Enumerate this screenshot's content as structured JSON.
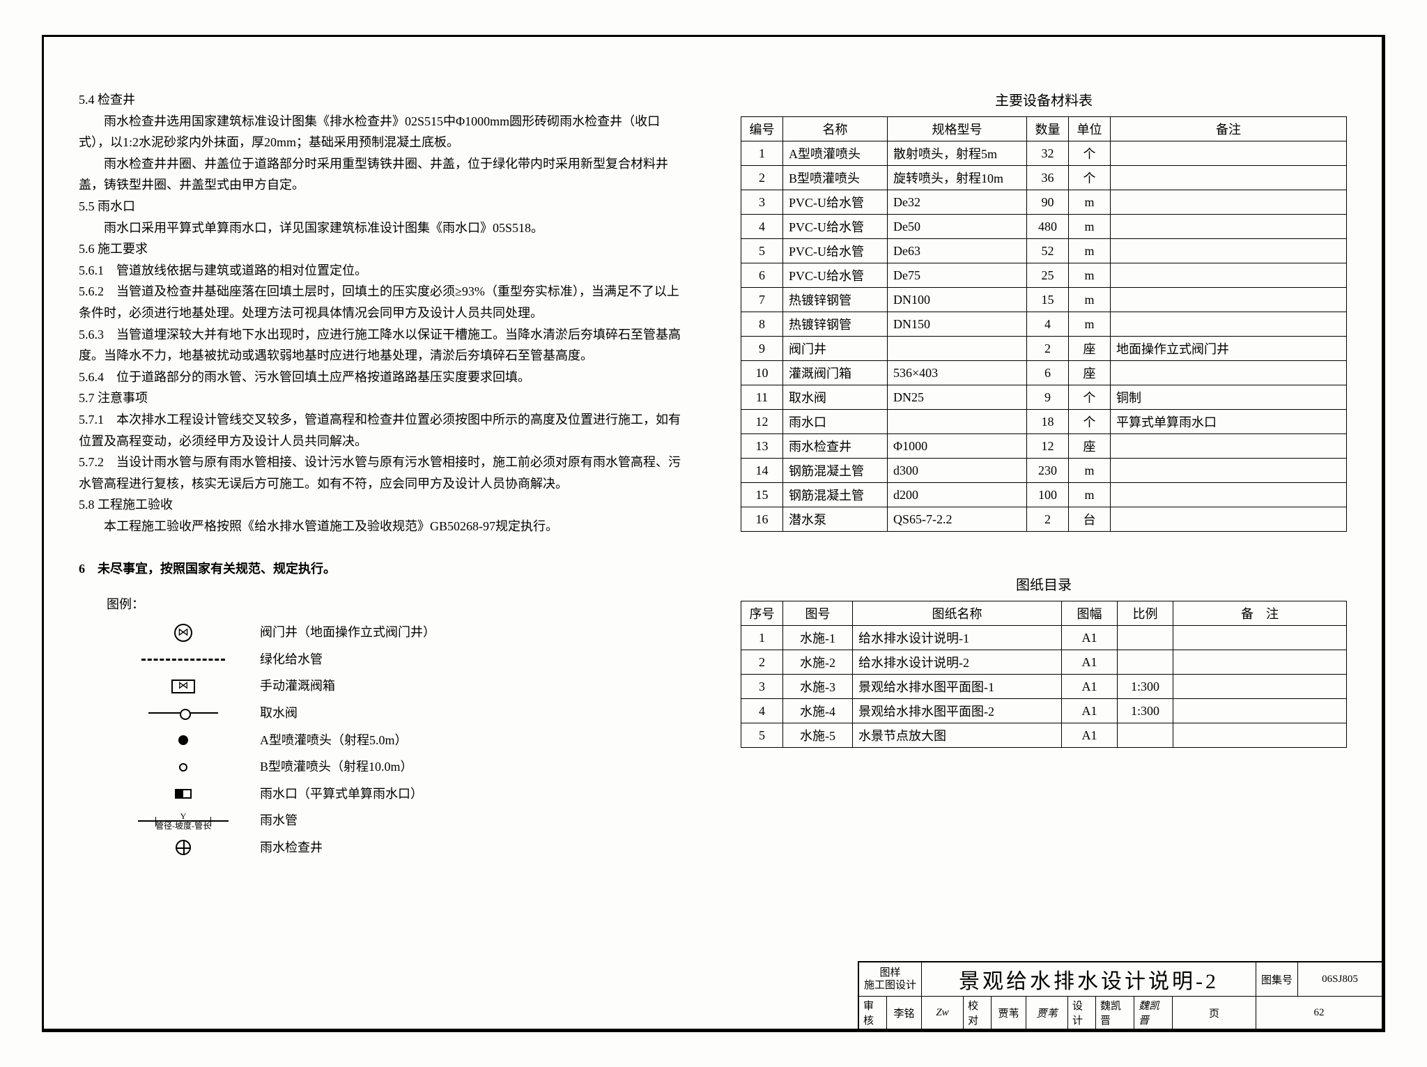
{
  "left_text": {
    "s54_head": "5.4 检查井",
    "s54_p1": "雨水检查井选用国家建筑标准设计图集《排水检查井》02S515中Φ1000mm圆形砖砌雨水检查井（收口式），以1:2水泥砂浆内外抹面，厚20mm；基础采用预制混凝土底板。",
    "s54_p2": "雨水检查井井圈、井盖位于道路部分时采用重型铸铁井圈、井盖，位于绿化带内时采用新型复合材料井盖，铸铁型井圈、井盖型式由甲方自定。",
    "s55_head": "5.5 雨水口",
    "s55_p1": "雨水口采用平算式单算雨水口，详见国家建筑标准设计图集《雨水口》05S518。",
    "s56_head": "5.6 施工要求",
    "s561": "5.6.1　管道放线依据与建筑或道路的相对位置定位。",
    "s562": "5.6.2　当管道及检查井基础座落在回填土层时，回填土的压实度必须≥93%（重型夯实标准），当满足不了以上条件时，必须进行地基处理。处理方法可视具体情况会同甲方及设计人员共同处理。",
    "s563": "5.6.3　当管道埋深较大并有地下水出现时，应进行施工降水以保证干槽施工。当降水清淤后夯填碎石至管基高度。当降水不力，地基被扰动或遇软弱地基时应进行地基处理，清淤后夯填碎石至管基高度。",
    "s564": "5.6.4　位于道路部分的雨水管、污水管回填土应严格按道路路基压实度要求回填。",
    "s57_head": "5.7 注意事项",
    "s571": "5.7.1　本次排水工程设计管线交叉较多，管道高程和检查井位置必须按图中所示的高度及位置进行施工，如有位置及高程变动，必须经甲方及设计人员共同解决。",
    "s572": "5.7.2　当设计雨水管与原有雨水管相接、设计污水管与原有污水管相接时，施工前必须对原有雨水管高程、污水管高程进行复核，核实无误后方可施工。如有不符，应会同甲方及设计人员协商解决。",
    "s58_head": "5.8 工程施工验收",
    "s58_p1": "本工程施工验收严格按照《给水排水管道施工及验收规范》GB50268-97规定执行。",
    "s6_head": "6　未尽事宜，按照国家有关规范、规定执行。"
  },
  "legend": {
    "title": "图例：",
    "items": [
      {
        "symbol": "circle-bowtie",
        "label": "阀门井（地面操作立式阀门井）"
      },
      {
        "symbol": "dashed-line",
        "label": "绿化给水管"
      },
      {
        "symbol": "rect-bowtie",
        "label": "手动灌溉阀箱"
      },
      {
        "symbol": "line-through",
        "label": "取水阀"
      },
      {
        "symbol": "circle-filled",
        "label": "A型喷灌喷头（射程5.0m）"
      },
      {
        "symbol": "circle-open",
        "label": "B型喷灌喷头（射程10.0m）"
      },
      {
        "symbol": "square-half",
        "label": "雨水口（平算式单算雨水口）"
      },
      {
        "symbol": "rain-pipe",
        "label": "雨水管",
        "sub": "管径-坡度-管长",
        "marker": "Y"
      },
      {
        "symbol": "crosshair",
        "label": "雨水检查井"
      }
    ]
  },
  "equip_table": {
    "title": "主要设备材料表",
    "headers": [
      "编号",
      "名称",
      "规格型号",
      "数量",
      "单位",
      "备注"
    ],
    "rows": [
      [
        "1",
        "A型喷灌喷头",
        "散射喷头，射程5m",
        "32",
        "个",
        ""
      ],
      [
        "2",
        "B型喷灌喷头",
        "旋转喷头，射程10m",
        "36",
        "个",
        ""
      ],
      [
        "3",
        "PVC-U给水管",
        "De32",
        "90",
        "m",
        ""
      ],
      [
        "4",
        "PVC-U给水管",
        "De50",
        "480",
        "m",
        ""
      ],
      [
        "5",
        "PVC-U给水管",
        "De63",
        "52",
        "m",
        ""
      ],
      [
        "6",
        "PVC-U给水管",
        "De75",
        "25",
        "m",
        ""
      ],
      [
        "7",
        "热镀锌钢管",
        "DN100",
        "15",
        "m",
        ""
      ],
      [
        "8",
        "热镀锌钢管",
        "DN150",
        "4",
        "m",
        ""
      ],
      [
        "9",
        "阀门井",
        "",
        "2",
        "座",
        "地面操作立式阀门井"
      ],
      [
        "10",
        "灌溉阀门箱",
        "536×403",
        "6",
        "座",
        ""
      ],
      [
        "11",
        "取水阀",
        "DN25",
        "9",
        "个",
        "铜制"
      ],
      [
        "12",
        "雨水口",
        "",
        "18",
        "个",
        "平算式单算雨水口"
      ],
      [
        "13",
        "雨水检查井",
        "Φ1000",
        "12",
        "座",
        ""
      ],
      [
        "14",
        "钢筋混凝土管",
        "d300",
        "230",
        "m",
        ""
      ],
      [
        "15",
        "钢筋混凝土管",
        "d200",
        "100",
        "m",
        ""
      ],
      [
        "16",
        "潜水泵",
        "QS65-7-2.2",
        "2",
        "台",
        ""
      ]
    ]
  },
  "drawing_table": {
    "title": "图纸目录",
    "headers": [
      "序号",
      "图号",
      "图纸名称",
      "图幅",
      "比例",
      "备　注"
    ],
    "rows": [
      [
        "1",
        "水施-1",
        "给水排水设计说明-1",
        "A1",
        "",
        ""
      ],
      [
        "2",
        "水施-2",
        "给水排水设计说明-2",
        "A1",
        "",
        ""
      ],
      [
        "3",
        "水施-3",
        "景观给水排水图平面图-1",
        "A1",
        "1:300",
        ""
      ],
      [
        "4",
        "水施-4",
        "景观给水排水图平面图-2",
        "A1",
        "1:300",
        ""
      ],
      [
        "5",
        "水施-5",
        "水景节点放大图",
        "A1",
        "",
        ""
      ]
    ]
  },
  "title_block": {
    "category_l1": "图样",
    "category_l2": "施工图设计",
    "main_title": "景观给水排水设计说明-2",
    "set_label": "图集号",
    "set_value": "06SJ805",
    "review_label": "审核",
    "review_name": "李铭",
    "check_label": "校对",
    "check_name": "贾苇",
    "design_label": "设计",
    "design_name": "魏凯晋",
    "page_label": "页",
    "page_value": "62"
  }
}
